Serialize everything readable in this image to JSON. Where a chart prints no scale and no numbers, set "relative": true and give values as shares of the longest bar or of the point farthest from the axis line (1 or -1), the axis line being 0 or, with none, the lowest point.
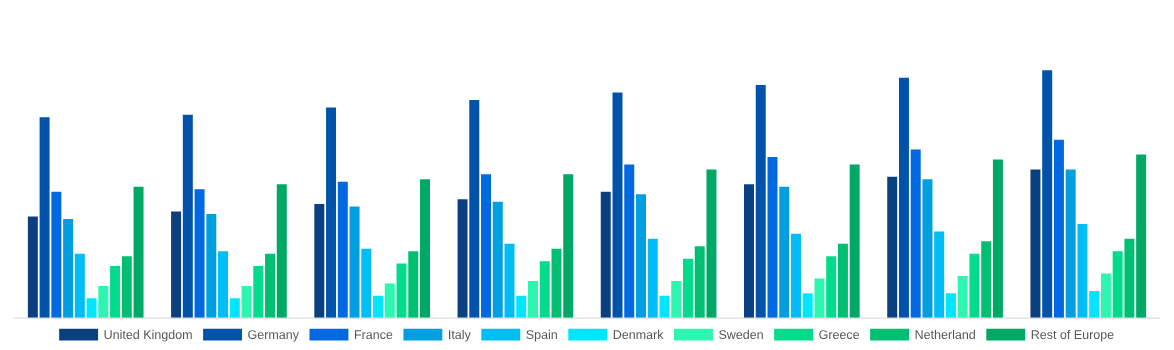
{
  "chart_data": {
    "type": "bar",
    "relative": true,
    "categories": [
      null,
      null,
      null,
      null,
      null,
      null,
      null,
      null
    ],
    "legend": "bottom",
    "grid": false,
    "series": [
      {
        "name": "United Kingdom",
        "color": "#0b4080",
        "values": [
          0.41,
          0.43,
          0.46,
          0.48,
          0.51,
          0.54,
          0.57,
          0.6
        ]
      },
      {
        "name": "Germany",
        "color": "#0053a8",
        "values": [
          0.81,
          0.82,
          0.85,
          0.88,
          0.91,
          0.94,
          0.97,
          1
        ]
      },
      {
        "name": "France",
        "color": "#0068e0",
        "values": [
          0.51,
          0.52,
          0.55,
          0.58,
          0.62,
          0.65,
          0.68,
          0.72
        ]
      },
      {
        "name": "Italy",
        "color": "#009fe0",
        "values": [
          0.4,
          0.42,
          0.45,
          0.47,
          0.5,
          0.53,
          0.56,
          0.6
        ]
      },
      {
        "name": "Spain",
        "color": "#00bdf8",
        "values": [
          0.26,
          0.27,
          0.28,
          0.3,
          0.32,
          0.34,
          0.35,
          0.38
        ]
      },
      {
        "name": "Denmark",
        "color": "#00e6ff",
        "values": [
          0.08,
          0.08,
          0.09,
          0.09,
          0.09,
          0.1,
          0.1,
          0.11
        ]
      },
      {
        "name": "Sweden",
        "color": "#2ef5b0",
        "values": [
          0.13,
          0.13,
          0.14,
          0.15,
          0.15,
          0.16,
          0.17,
          0.18
        ]
      },
      {
        "name": "Greece",
        "color": "#00dc8c",
        "values": [
          0.21,
          0.21,
          0.22,
          0.23,
          0.24,
          0.25,
          0.26,
          0.27
        ]
      },
      {
        "name": "Netherland",
        "color": "#00bf72",
        "values": [
          0.25,
          0.26,
          0.27,
          0.28,
          0.29,
          0.3,
          0.31,
          0.32
        ]
      },
      {
        "name": "Rest of Europe",
        "color": "#00a866",
        "values": [
          0.53,
          0.54,
          0.56,
          0.58,
          0.6,
          0.62,
          0.64,
          0.66
        ]
      }
    ]
  }
}
